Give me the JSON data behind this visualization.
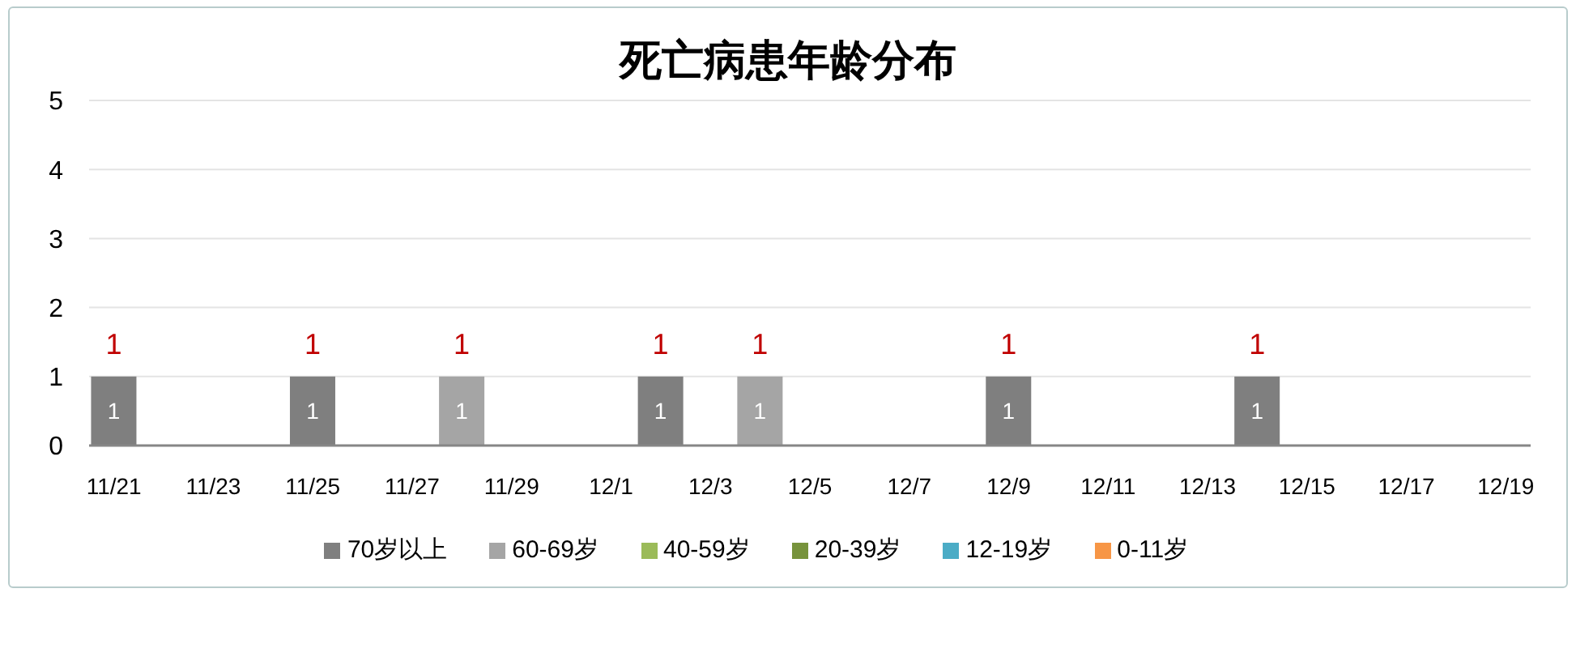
{
  "chart_data": {
    "type": "bar",
    "title": "死亡病患年龄分布",
    "categories": [
      "11/21",
      null,
      "11/23",
      null,
      "11/25",
      null,
      "11/27",
      null,
      "11/29",
      null,
      "12/1",
      null,
      "12/3",
      null,
      "12/5",
      null,
      "12/7",
      null,
      "12/9",
      null,
      "12/11",
      null,
      "12/13",
      null,
      "12/15",
      null,
      "12/17",
      null,
      "12/19"
    ],
    "series": [
      {
        "name": "70岁以上",
        "color": "#7f7f7f",
        "values": [
          1,
          null,
          null,
          null,
          1,
          null,
          null,
          null,
          null,
          null,
          null,
          1,
          null,
          null,
          null,
          null,
          null,
          null,
          1,
          null,
          null,
          null,
          null,
          1,
          null,
          null,
          null,
          null,
          null
        ]
      },
      {
        "name": "60-69岁",
        "color": "#a5a5a5",
        "values": [
          null,
          null,
          null,
          null,
          null,
          null,
          null,
          1,
          null,
          null,
          null,
          null,
          null,
          1,
          null,
          null,
          null,
          null,
          null,
          null,
          null,
          null,
          null,
          null,
          null,
          null,
          null,
          null,
          null
        ]
      },
      {
        "name": "40-59岁",
        "color": "#9bbb59",
        "values": [
          null,
          null,
          null,
          null,
          null,
          null,
          null,
          null,
          null,
          null,
          null,
          null,
          null,
          null,
          null,
          null,
          null,
          null,
          null,
          null,
          null,
          null,
          null,
          null,
          null,
          null,
          null,
          null,
          null
        ]
      },
      {
        "name": "20-39岁",
        "color": "#77933c",
        "values": [
          null,
          null,
          null,
          null,
          null,
          null,
          null,
          null,
          null,
          null,
          null,
          null,
          null,
          null,
          null,
          null,
          null,
          null,
          null,
          null,
          null,
          null,
          null,
          null,
          null,
          null,
          null,
          null,
          null
        ]
      },
      {
        "name": "12-19岁",
        "color": "#4bacc6",
        "values": [
          null,
          null,
          null,
          null,
          null,
          null,
          null,
          null,
          null,
          null,
          null,
          null,
          null,
          null,
          null,
          null,
          null,
          null,
          null,
          null,
          null,
          null,
          null,
          null,
          null,
          null,
          null,
          null,
          null
        ]
      },
      {
        "name": "0-11岁",
        "color": "#f79646",
        "values": [
          null,
          null,
          null,
          null,
          null,
          null,
          null,
          null,
          null,
          null,
          null,
          null,
          null,
          null,
          null,
          null,
          null,
          null,
          null,
          null,
          null,
          null,
          null,
          null,
          null,
          null,
          null,
          null,
          null
        ]
      }
    ],
    "totals": [
      "1",
      null,
      null,
      null,
      "1",
      null,
      null,
      "1",
      null,
      null,
      null,
      "1",
      null,
      "1",
      null,
      null,
      null,
      null,
      "1",
      null,
      null,
      null,
      null,
      "1",
      null,
      null,
      null,
      null,
      null
    ],
    "stacked": true,
    "data_labels": true,
    "ylim": [
      0,
      5
    ],
    "yticks": [
      0,
      1,
      2,
      3,
      4,
      5
    ],
    "grid": "y",
    "legend": "bottom"
  }
}
